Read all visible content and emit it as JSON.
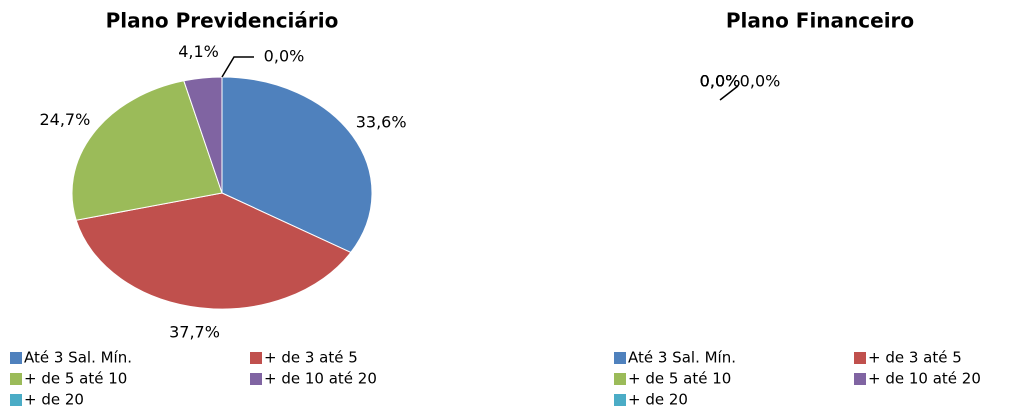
{
  "chart_data": [
    {
      "type": "pie",
      "title": "Plano Previdenciário",
      "categories": [
        "Até 3 Sal. Mín.",
        "+ de 3 até 5",
        "+ de 5 até 10",
        "+ de 10 até 20",
        "+ de 20"
      ],
      "values": [
        33.6,
        37.7,
        24.7,
        4.1,
        0.0
      ],
      "value_labels": [
        "33,6%",
        "37,7%",
        "24,7%",
        "4,1%",
        "0,0%"
      ],
      "colors": [
        "#4f81bd",
        "#c0504d",
        "#9bbb59",
        "#8064a2",
        "#4bacc6"
      ]
    },
    {
      "type": "pie",
      "title": "Plano Financeiro",
      "categories": [
        "Até 3 Sal. Mín.",
        "+ de 3 até 5",
        "+ de 5 até 10",
        "+ de 10 até 20",
        "+ de 20"
      ],
      "values": [
        0.0,
        0.0,
        0.0,
        0.0,
        0.0
      ],
      "value_labels": [
        "0,0%",
        "0,0%",
        "0,0%",
        "0,0%",
        "0,0%"
      ],
      "colors": [
        "#4f81bd",
        "#c0504d",
        "#9bbb59",
        "#8064a2",
        "#4bacc6"
      ]
    }
  ]
}
